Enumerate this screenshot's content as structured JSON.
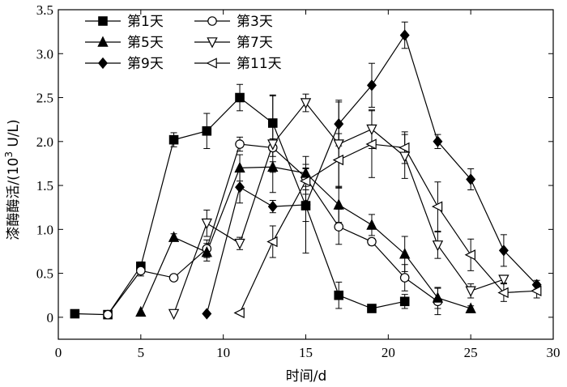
{
  "chart_data": {
    "type": "line",
    "title": "",
    "xlabel": "时间/d",
    "ylabel_prefix": "漆酶酶活/(10",
    "ylabel_sup": "3",
    "ylabel_suffix": " U/L)",
    "xlim": [
      0,
      30
    ],
    "ylim": [
      -0.25,
      3.5
    ],
    "xticks": [
      0,
      5,
      10,
      15,
      20,
      25,
      30
    ],
    "yticks": [
      0,
      0.5,
      1.0,
      1.5,
      2.0,
      2.5,
      3.0,
      3.5
    ],
    "xtick_labels": [
      "0",
      "5",
      "10",
      "15",
      "20",
      "25",
      "30"
    ],
    "ytick_labels": [
      "0",
      "0.5",
      "1.0",
      "1.5",
      "2.0",
      "2.5",
      "3.0",
      "3.5"
    ],
    "grid": false,
    "legend_position": "top-left",
    "series": [
      {
        "name": "第1天",
        "marker": "square",
        "x": [
          1,
          3,
          5,
          7,
          9,
          11,
          13,
          15,
          17,
          19,
          21
        ],
        "y": [
          0.04,
          0.03,
          0.58,
          2.02,
          2.12,
          2.5,
          2.21,
          1.27,
          0.25,
          0.1,
          0.18
        ],
        "err": [
          0,
          0.02,
          0.05,
          0.08,
          0.2,
          0.15,
          0.32,
          0.18,
          0.15,
          0.02,
          0.08
        ]
      },
      {
        "name": "第3天",
        "marker": "circle-open",
        "x": [
          3,
          5,
          7,
          9,
          11,
          13,
          15,
          17,
          19,
          21,
          23
        ],
        "y": [
          0.03,
          0.53,
          0.45,
          0.78,
          1.97,
          1.93,
          1.59,
          1.03,
          0.86,
          0.45,
          0.18
        ],
        "err": [
          0.02,
          0.06,
          0.03,
          0.1,
          0.08,
          0.1,
          0.1,
          0.2,
          0.04,
          0.15,
          0.15
        ]
      },
      {
        "name": "第5天",
        "marker": "triangle-up",
        "x": [
          5,
          7,
          9,
          11,
          13,
          15,
          17,
          19,
          21,
          23,
          25
        ],
        "y": [
          0.06,
          0.91,
          0.74,
          1.7,
          1.71,
          1.64,
          1.28,
          1.05,
          0.72,
          0.22,
          0.1
        ],
        "err": [
          0,
          0.04,
          0.1,
          0.15,
          0.06,
          0.1,
          0.2,
          0.12,
          0.2,
          0.12,
          0.03
        ]
      },
      {
        "name": "第7天",
        "marker": "triangle-down-open",
        "x": [
          7,
          9,
          11,
          13,
          15,
          17,
          19,
          21,
          23,
          25,
          27
        ],
        "y": [
          0.04,
          1.07,
          0.84,
          1.97,
          2.44,
          1.97,
          2.14,
          1.83,
          0.82,
          0.3,
          0.43
        ],
        "err": [
          0,
          0.15,
          0.07,
          0.55,
          0.1,
          0.5,
          0.22,
          0.25,
          0.15,
          0.08,
          0.04
        ]
      },
      {
        "name": "第9天",
        "marker": "diamond",
        "x": [
          9,
          11,
          13,
          15,
          17,
          19,
          21,
          23,
          25,
          27,
          29
        ],
        "y": [
          0.04,
          1.48,
          1.26,
          1.28,
          2.2,
          2.64,
          3.21,
          2.0,
          1.57,
          0.76,
          0.37
        ],
        "err": [
          0,
          0.18,
          0.07,
          0.55,
          0.25,
          0.25,
          0.15,
          0.08,
          0.12,
          0.18,
          0.05
        ]
      },
      {
        "name": "第11天",
        "marker": "triangle-left-open",
        "x": [
          11,
          13,
          15,
          17,
          19,
          21,
          23,
          25,
          27,
          29
        ],
        "y": [
          0.05,
          0.86,
          1.55,
          1.79,
          1.97,
          1.93,
          1.26,
          0.71,
          0.28,
          0.3
        ],
        "err": [
          0,
          0.18,
          0.15,
          0.3,
          0.38,
          0.18,
          0.28,
          0.18,
          0.1,
          0.08
        ]
      }
    ]
  }
}
